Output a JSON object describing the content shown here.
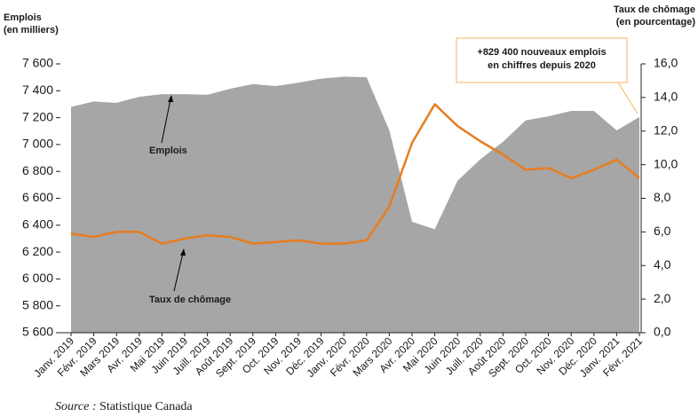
{
  "chart_data": {
    "type": "area",
    "y_label": [
      "Emplois",
      "(en milliers)"
    ],
    "y2_label": [
      "Taux de chômage",
      "(en pourcentage)"
    ],
    "categories": [
      "Janv. 2019",
      "Févr. 2019",
      "Mars 2019",
      "Avr. 2019",
      "Mai 2019",
      "Juin 2019",
      "Juill. 2019",
      "Août 2019",
      "Sept. 2019",
      "Oct. 2019",
      "Nov. 2019",
      "Déc. 2019",
      "Janv. 2020",
      "Févr. 2020",
      "Mars 2020",
      "Avr. 2020",
      "Mai 2020",
      "Juin 2020",
      "Juill. 2020",
      "Août 2020",
      "Sept. 2020",
      "Oct. 2020",
      "Nov. 2020",
      "Déc. 2020",
      "Janv. 2021",
      "Févr. 2021"
    ],
    "series": [
      {
        "name": "Emplois",
        "type": "area",
        "color": "#a6a6a6",
        "values": [
          7280,
          7320,
          7310,
          7355,
          7375,
          7375,
          7370,
          7415,
          7450,
          7435,
          7460,
          7490,
          7505,
          7500,
          7105,
          6425,
          6370,
          6730,
          6890,
          7020,
          7180,
          7210,
          7250,
          7250,
          7105,
          7205
        ]
      },
      {
        "name": "Taux de chômage",
        "type": "line",
        "axis": "y2",
        "color": "#e87d1e",
        "values": [
          5.9,
          5.7,
          6.0,
          6.0,
          5.3,
          5.6,
          5.8,
          5.7,
          5.3,
          5.4,
          5.5,
          5.3,
          5.3,
          5.5,
          7.5,
          11.3,
          13.6,
          12.3,
          11.4,
          10.6,
          9.7,
          9.8,
          9.2,
          9.7,
          10.3,
          9.2
        ]
      }
    ],
    "ylim": [
      5600,
      7600
    ],
    "yticks": [
      {
        "value": 5600,
        "label": "5 600"
      },
      {
        "value": 5800,
        "label": "5 800"
      },
      {
        "value": 6000,
        "label": "6 000"
      },
      {
        "value": 6200,
        "label": "6 200"
      },
      {
        "value": 6400,
        "label": "6 400"
      },
      {
        "value": 6600,
        "label": "6 600"
      },
      {
        "value": 6800,
        "label": "6 800"
      },
      {
        "value": 7000,
        "label": "7 000"
      },
      {
        "value": 7200,
        "label": "7 200"
      },
      {
        "value": 7400,
        "label": "7 400"
      },
      {
        "value": 7600,
        "label": "7 600"
      }
    ],
    "y2lim": [
      0,
      16
    ],
    "y2ticks": [
      {
        "value": 0,
        "label": "0,0"
      },
      {
        "value": 2,
        "label": "2,0"
      },
      {
        "value": 4,
        "label": "4,0"
      },
      {
        "value": 6,
        "label": "6,0"
      },
      {
        "value": 8,
        "label": "8,0"
      },
      {
        "value": 10,
        "label": "10,0"
      },
      {
        "value": 12,
        "label": "12,0"
      },
      {
        "value": 14,
        "label": "14,0"
      },
      {
        "value": 16,
        "label": "16,0"
      }
    ],
    "annotation": [
      "+829 400 nouveaux emplois",
      "en chiffres depuis 2020"
    ],
    "source": {
      "label": "Source :",
      "text": "Statistique Canada"
    }
  }
}
